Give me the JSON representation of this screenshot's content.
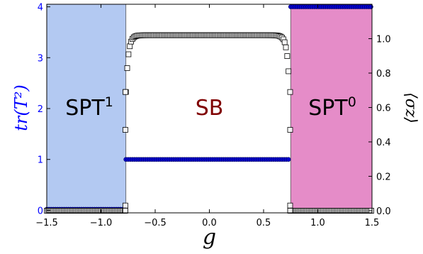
{
  "chart_data": {
    "type": "scatter",
    "xlabel": "g",
    "ylabel_left": "tr(T²)",
    "ylabel_right": "⟨σz⟩",
    "xlim": [
      -1.5,
      1.5
    ],
    "ylim_left": [
      -0.05,
      4.05
    ],
    "ylim_right": [
      -0.0125,
      1.2
    ],
    "xticks": [
      -1.5,
      -1.0,
      -0.5,
      0.0,
      0.5,
      1.0,
      1.5
    ],
    "xtick_labels": [
      "−1.5",
      "−1.0",
      "−0.5",
      "0.0",
      "0.5",
      "1.0",
      "1.5"
    ],
    "yticks_left": [
      0,
      1,
      2,
      3,
      4
    ],
    "yticks_right": [
      0.0,
      0.2,
      0.4,
      0.6,
      0.8,
      1.0
    ],
    "ytick_labels_right": [
      "0.0",
      "0.2",
      "0.4",
      "0.6",
      "0.8",
      "1.0"
    ],
    "grid": false,
    "regions": [
      {
        "label": "SPT",
        "superscript": "1",
        "x_range": [
          -1.5,
          -0.77
        ],
        "color": "#b3c9f2"
      },
      {
        "label": "SB",
        "superscript": "",
        "x_range": [
          -0.77,
          0.75
        ],
        "color": "#ffffff"
      },
      {
        "label": "SPT",
        "superscript": "0",
        "x_range": [
          0.75,
          1.5
        ],
        "color": "#e58cc8"
      }
    ],
    "colors": {
      "left_axis": "#0000ff",
      "sb_label": "#800000",
      "dots": "#0000cc",
      "squares_edge": "#000000"
    },
    "series": [
      {
        "marker": "circle",
        "axis": "left",
        "segments": [
          {
            "x_start": -1.5,
            "x_end": -0.78,
            "value": 0.02
          },
          {
            "x_start": -0.77,
            "x_end": 0.74,
            "value": 1.0
          },
          {
            "x_start": 0.75,
            "x_end": 1.5,
            "value": 4.0
          }
        ]
      },
      {
        "marker": "square",
        "axis": "right",
        "segments": [
          {
            "x_start": -1.5,
            "x_end": -0.78,
            "value": 0.0
          },
          {
            "x_start": -0.77,
            "x_end": 0.74,
            "shape": "dome",
            "peak": 1.02,
            "edge": 0.69
          },
          {
            "x_start": 0.75,
            "x_end": 1.5,
            "value": 0.0
          }
        ],
        "transition_points": [
          {
            "x": -0.775,
            "values": [
              0.0,
              0.03,
              0.47,
              0.69
            ]
          },
          {
            "x": 0.745,
            "values": [
              0.0,
              0.03,
              0.47,
              0.69
            ]
          }
        ]
      }
    ]
  }
}
